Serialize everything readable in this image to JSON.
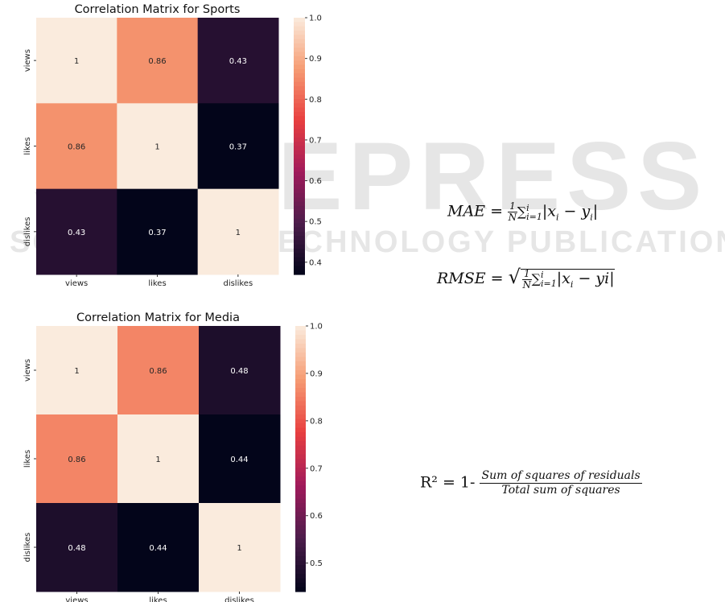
{
  "watermark": {
    "line1": "SCITEPRESS",
    "line2": "SCIENCE AND TECHNOLOGY PUBLICATIONS"
  },
  "chart_data": [
    {
      "type": "heatmap",
      "title": "Correlation Matrix for Sports",
      "xlabels": [
        "views",
        "likes",
        "dislikes"
      ],
      "ylabels": [
        "views",
        "likes",
        "dislikes"
      ],
      "values": [
        [
          1,
          0.86,
          0.43
        ],
        [
          0.86,
          1,
          0.37
        ],
        [
          0.43,
          0.37,
          1
        ]
      ],
      "value_labels": [
        [
          "1",
          "0.86",
          "0.43"
        ],
        [
          "0.86",
          "1",
          "0.37"
        ],
        [
          "0.43",
          "0.37",
          "1"
        ]
      ],
      "colorbar": {
        "min": 0.37,
        "max": 1.0,
        "ticks": [
          0.4,
          0.5,
          0.6,
          0.7,
          0.8,
          0.9,
          1.0
        ],
        "tick_labels": [
          "0.4",
          "0.5",
          "0.6",
          "0.7",
          "0.8",
          "0.9",
          "1.0"
        ],
        "colormap": "rocket"
      }
    },
    {
      "type": "heatmap",
      "title": "Correlation Matrix for Media",
      "xlabels": [
        "views",
        "likes",
        "dislikes"
      ],
      "ylabels": [
        "views",
        "likes",
        "dislikes"
      ],
      "values": [
        [
          1,
          0.86,
          0.48
        ],
        [
          0.86,
          1,
          0.44
        ],
        [
          0.48,
          0.44,
          1
        ]
      ],
      "value_labels": [
        [
          "1",
          "0.86",
          "0.48"
        ],
        [
          "0.86",
          "1",
          "0.44"
        ],
        [
          "0.48",
          "0.44",
          "1"
        ]
      ],
      "colorbar": {
        "min": 0.44,
        "max": 1.0,
        "ticks": [
          0.5,
          0.6,
          0.7,
          0.8,
          0.9,
          1.0
        ],
        "tick_labels": [
          "0.5",
          "0.6",
          "0.7",
          "0.8",
          "0.9",
          "1.0"
        ],
        "colormap": "rocket"
      }
    }
  ],
  "equations": {
    "mae_lhs": "MAE =",
    "rmse_lhs": "RMSE =",
    "one": "1",
    "N": "N",
    "sigma": "∑",
    "sum_top": "i",
    "sum_bottom": "i=1",
    "mae_body": "|x",
    "mae_sub": "i",
    "mae_minus": " − y",
    "mae_sub2": "i",
    "bar": "|",
    "rmse_body": "|x",
    "rmse_sub": "i",
    "rmse_tail": " − yi|",
    "r2_lhs": "R² = 1-",
    "r2_num": "Sum of squares of residuals",
    "r2_den": "Total sum of squares"
  }
}
